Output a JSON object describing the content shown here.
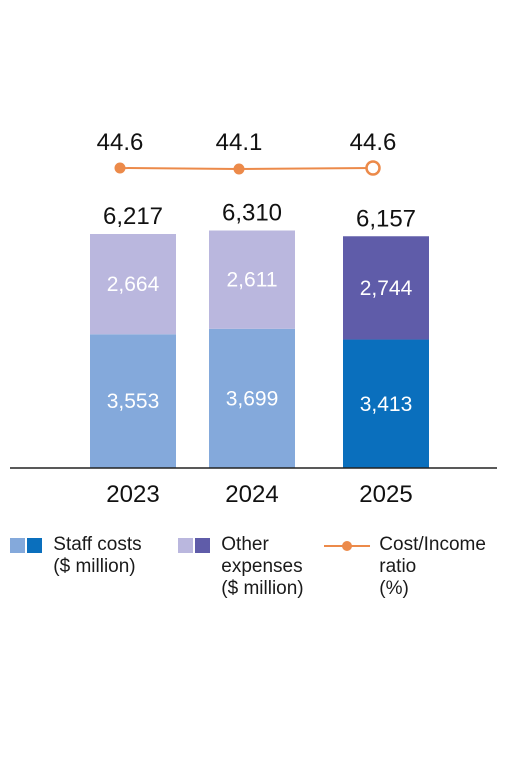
{
  "chart_data": {
    "type": "bar",
    "stacked": true,
    "categories": [
      "2023",
      "2024",
      "2025"
    ],
    "series": [
      {
        "name": "Staff costs ($ million)",
        "values": [
          3553,
          3699,
          3413
        ],
        "value_labels": [
          "3,553",
          "3,699",
          "3,413"
        ]
      },
      {
        "name": "Other expenses ($ million)",
        "values": [
          2664,
          2611,
          2744
        ],
        "value_labels": [
          "2,664",
          "2,611",
          "2,744"
        ]
      }
    ],
    "totals": [
      6217,
      6310,
      6157
    ],
    "total_labels": [
      "6,217",
      "6,310",
      "6,157"
    ],
    "line_series": {
      "name": "Cost/Income ratio (%)",
      "values": [
        44.6,
        44.1,
        44.6
      ],
      "value_labels": [
        "44.6",
        "44.1",
        "44.6"
      ]
    },
    "colors": {
      "staff_prior": "#84a9db",
      "staff_current": "#0a6fbd",
      "other_prior": "#bab7de",
      "other_current": "#5f5ca9",
      "ratio_line": "#ec8a4a",
      "axis": "#222222"
    },
    "ylim": [
      0,
      6500
    ],
    "title": "",
    "xlabel": "",
    "ylabel": "",
    "legend_position": "bottom",
    "grid": false
  },
  "legend": {
    "staff_line1": "Staff costs",
    "staff_line2": "($ million)",
    "other_line1": "Other",
    "other_line2": "expenses",
    "other_line3": "($ million)",
    "ratio_line1": "Cost/Income",
    "ratio_line2": "ratio",
    "ratio_line3": "(%)"
  }
}
